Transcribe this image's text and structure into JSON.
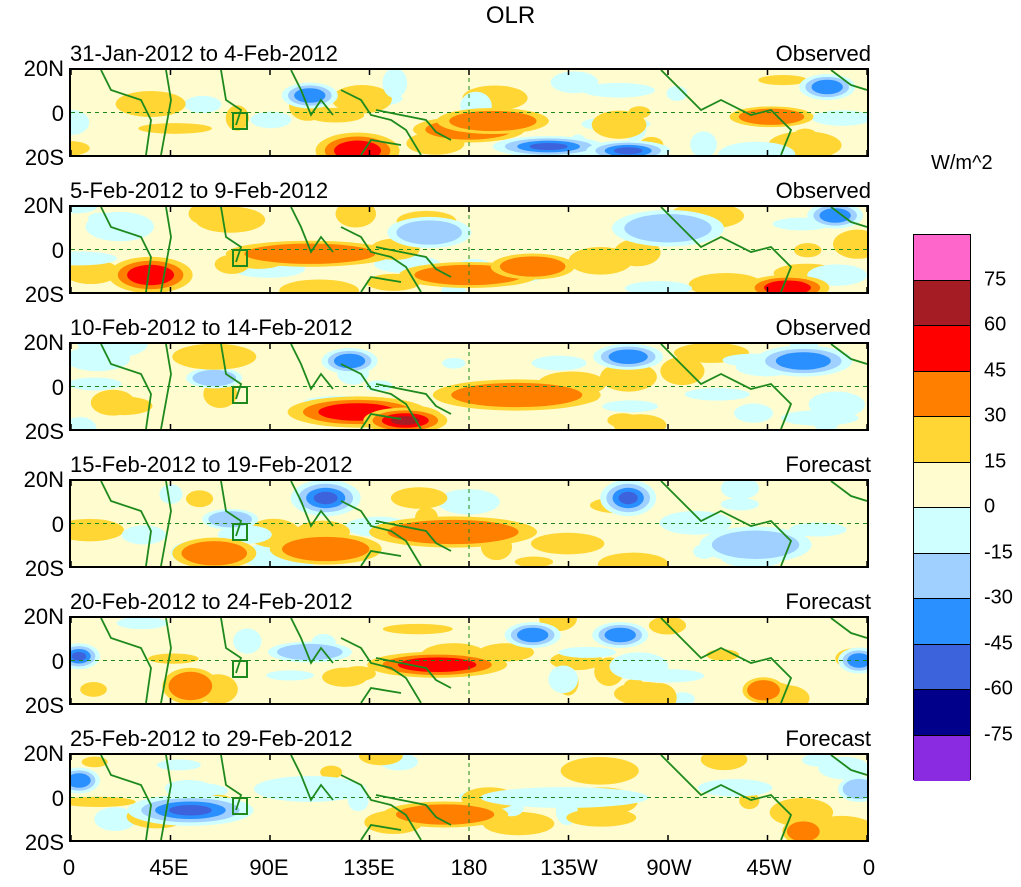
{
  "chart_data": {
    "type": "heatmap",
    "title": "OLR",
    "units": "W/m^2",
    "x_ticks": [
      "0",
      "45E",
      "90E",
      "135E",
      "180",
      "135W",
      "90W",
      "45W",
      "0"
    ],
    "y_ticks": [
      "20N",
      "0",
      "20S"
    ],
    "colorbar": {
      "levels": [
        "75",
        "60",
        "45",
        "30",
        "15",
        "0",
        "-15",
        "-30",
        "-45",
        "-60",
        "-75"
      ],
      "colors": [
        "#ff66cc",
        "#a61c24",
        "#ff0000",
        "#ff7f00",
        "#ffd633",
        "#fffccf",
        "#cfffff",
        "#9fd0ff",
        "#2a8fff",
        "#3d63dc",
        "#00008b",
        "#8a2be2"
      ]
    },
    "panels": [
      {
        "dates": "31-Jan-2012 to 4-Feb-2012",
        "status": "Observed"
      },
      {
        "dates": "5-Feb-2012 to 9-Feb-2012",
        "status": "Observed"
      },
      {
        "dates": "10-Feb-2012 to 14-Feb-2012",
        "status": "Observed"
      },
      {
        "dates": "15-Feb-2012 to 19-Feb-2012",
        "status": "Forecast"
      },
      {
        "dates": "20-Feb-2012 to 24-Feb-2012",
        "status": "Forecast"
      },
      {
        "dates": "25-Feb-2012 to 29-Feb-2012",
        "status": "Forecast"
      }
    ]
  }
}
